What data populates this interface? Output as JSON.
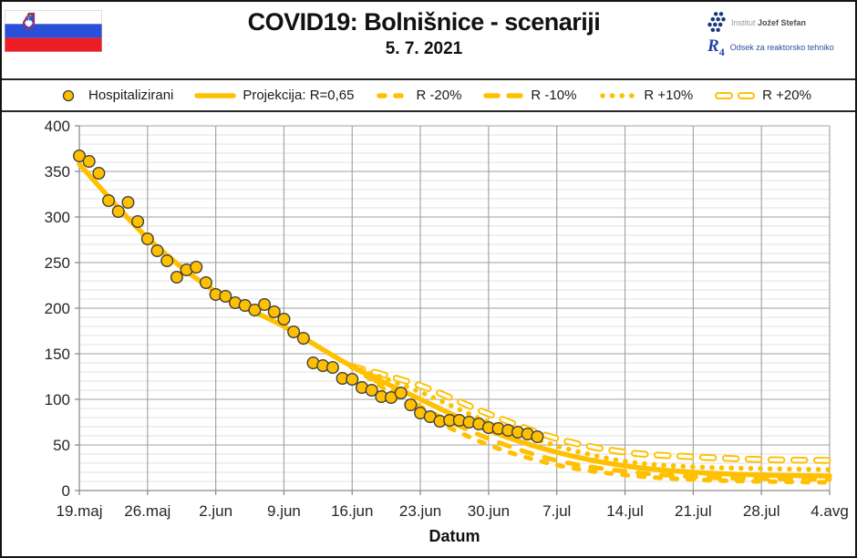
{
  "header": {
    "title": "COVID19: Bolnišnice - scenariji",
    "subtitle": "5. 7. 2021",
    "logo": {
      "institute_prefix": "Institut",
      "institute_name": "Jožef Stefan",
      "dept_symbol": "R",
      "dept_symbol_sub": "4",
      "dept_name": "Odsek za reaktorsko tehniko"
    }
  },
  "legend": [
    {
      "label": "Hospitalizirani",
      "marker": "circle"
    },
    {
      "label": "Projekcija: R=0,65",
      "marker": "solid"
    },
    {
      "label": "R -20%",
      "marker": "dash-short"
    },
    {
      "label": "R -10%",
      "marker": "dash-long"
    },
    {
      "label": "R +10%",
      "marker": "dots"
    },
    {
      "label": "R +20%",
      "marker": "dash-hollow"
    }
  ],
  "chart_data": {
    "type": "line",
    "title": "COVID19: Bolnišnice - scenariji",
    "subtitle": "5. 7. 2021",
    "xlabel": "Datum",
    "ylabel": "",
    "ylim": [
      0,
      400
    ],
    "y_major_step": 50,
    "y_minor_step": 10,
    "x_total_days": 77,
    "x_tick_interval_days": 7,
    "x_tick_labels": [
      "19.maj",
      "26.maj",
      "2.jun",
      "9.jun",
      "16.jun",
      "23.jun",
      "30.jun",
      "7.jul",
      "14.jul",
      "21.jul",
      "28.jul",
      "4.avg"
    ],
    "grid": "major+minor horizontal, weekly vertical",
    "legend_position": "top",
    "colors": {
      "accent": "#FFC000",
      "marker_stroke": "#3F3F3F",
      "text": "#262626"
    },
    "series": [
      {
        "name": "Hospitalizirani",
        "type": "scatter",
        "style": "circle",
        "start_day": 0,
        "step_days": 1,
        "values": [
          367,
          361,
          348,
          318,
          306,
          316,
          295,
          276,
          263,
          252,
          234,
          242,
          245,
          228,
          215,
          213,
          206,
          203,
          198,
          204,
          196,
          188,
          174,
          167,
          140,
          137,
          135,
          123,
          122,
          113,
          110,
          103,
          102,
          107,
          94,
          85,
          81,
          76,
          77,
          77,
          75,
          73,
          69,
          68,
          66,
          64,
          62,
          59
        ]
      },
      {
        "name": "Projekcija: R=0,65",
        "type": "line",
        "style": "solid",
        "points": [
          [
            0,
            358
          ],
          [
            7,
            277
          ],
          [
            14,
            218
          ],
          [
            21,
            180
          ],
          [
            28,
            136
          ],
          [
            35,
            100
          ],
          [
            42,
            66
          ],
          [
            49,
            42
          ],
          [
            56,
            27
          ],
          [
            63,
            20
          ],
          [
            70,
            17
          ],
          [
            77,
            16
          ]
        ]
      },
      {
        "name": "R -20%",
        "type": "line",
        "style": "dash-short",
        "points": [
          [
            28,
            136
          ],
          [
            35,
            86
          ],
          [
            42,
            50
          ],
          [
            49,
            28
          ],
          [
            56,
            17
          ],
          [
            63,
            12
          ],
          [
            70,
            10
          ],
          [
            77,
            9
          ]
        ]
      },
      {
        "name": "R -10%",
        "type": "line",
        "style": "dash-long",
        "points": [
          [
            28,
            136
          ],
          [
            35,
            92
          ],
          [
            42,
            57
          ],
          [
            49,
            33
          ],
          [
            56,
            21
          ],
          [
            63,
            15
          ],
          [
            70,
            13
          ],
          [
            77,
            12
          ]
        ]
      },
      {
        "name": "R +10%",
        "type": "line",
        "style": "dots",
        "points": [
          [
            28,
            136
          ],
          [
            35,
            108
          ],
          [
            42,
            75
          ],
          [
            49,
            49
          ],
          [
            56,
            32
          ],
          [
            63,
            26
          ],
          [
            70,
            24
          ],
          [
            77,
            23
          ]
        ]
      },
      {
        "name": "R +20%",
        "type": "line",
        "style": "dash-hollow",
        "points": [
          [
            28,
            136
          ],
          [
            35,
            115
          ],
          [
            42,
            84
          ],
          [
            49,
            57
          ],
          [
            56,
            42
          ],
          [
            63,
            37
          ],
          [
            70,
            34
          ],
          [
            77,
            33
          ]
        ]
      }
    ]
  }
}
